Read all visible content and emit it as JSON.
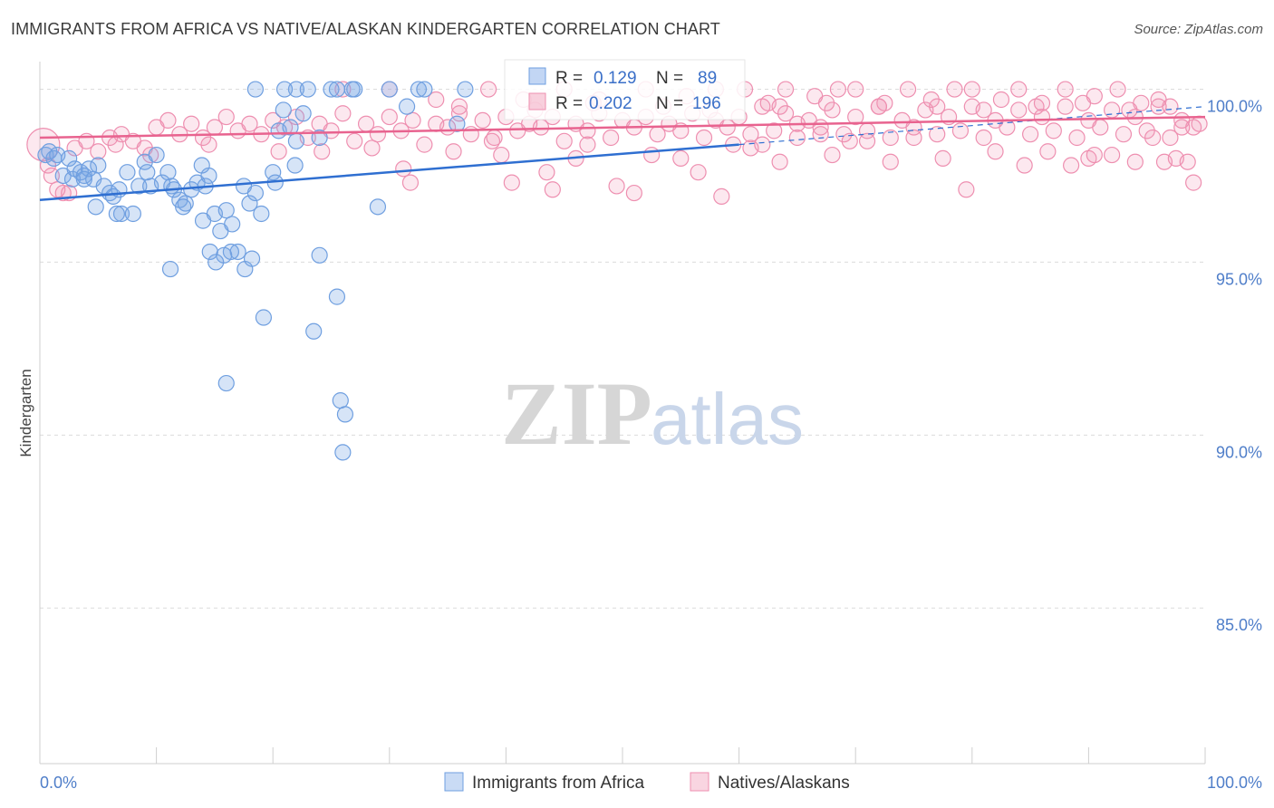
{
  "title": "IMMIGRANTS FROM AFRICA VS NATIVE/ALASKAN KINDERGARTEN CORRELATION CHART",
  "source": "Source: ZipAtlas.com",
  "watermark": {
    "zip": "ZIP",
    "atlas": "atlas"
  },
  "colors": {
    "blue": "#6f9fe0",
    "blue_fill": "rgba(120,165,230,0.30)",
    "blue_line": "#2f6fd1",
    "pink": "#ee8fb0",
    "pink_fill": "rgba(240,150,180,0.22)",
    "pink_line": "#e8638f",
    "grid": "#dcdcdc",
    "tick_text": "#4f7ec9"
  },
  "chart_data": {
    "type": "scatter",
    "title": "IMMIGRANTS FROM AFRICA VS NATIVE/ALASKAN KINDERGARTEN CORRELATION CHART",
    "ylabel": "Kindergarten",
    "xlabel": "",
    "xlim": [
      0,
      100
    ],
    "ylim": [
      80.5,
      100.8
    ],
    "x_tick_labels": {
      "left": "0.0%",
      "right": "100.0%"
    },
    "y_ticks": [
      {
        "value": 100,
        "label": "100.0%"
      },
      {
        "value": 95,
        "label": "95.0%"
      },
      {
        "value": 90,
        "label": "90.0%"
      },
      {
        "value": 85,
        "label": "85.0%"
      }
    ],
    "legend_stats": [
      {
        "r_label": "R =",
        "r": "0.129",
        "n_label": "N =",
        "n": "89"
      },
      {
        "r_label": "R =",
        "r": "0.202",
        "n_label": "N =",
        "n": "196"
      }
    ],
    "series": [
      {
        "name": "Immigrants from Africa",
        "color": "blue",
        "trend": {
          "x0": 0,
          "y0": 96.8,
          "x1": 60,
          "y1": 98.4,
          "dash_to_x": 100,
          "dash_to_y": 99.5
        },
        "points": [
          [
            0.5,
            98.1
          ],
          [
            0.8,
            98.2
          ],
          [
            1.2,
            98.0
          ],
          [
            1.5,
            98.1
          ],
          [
            2.0,
            97.5
          ],
          [
            2.5,
            98.0
          ],
          [
            2.8,
            97.4
          ],
          [
            3.0,
            97.7
          ],
          [
            3.5,
            97.6
          ],
          [
            3.8,
            97.5
          ],
          [
            4.2,
            97.7
          ],
          [
            4.6,
            97.4
          ],
          [
            5.0,
            97.8
          ],
          [
            5.5,
            97.2
          ],
          [
            6.0,
            97.0
          ],
          [
            6.3,
            96.9
          ],
          [
            6.8,
            97.1
          ],
          [
            7.0,
            96.4
          ],
          [
            7.5,
            97.6
          ],
          [
            8.0,
            96.4
          ],
          [
            8.5,
            97.2
          ],
          [
            9.0,
            97.9
          ],
          [
            9.5,
            97.2
          ],
          [
            10.0,
            98.1
          ],
          [
            10.5,
            97.3
          ],
          [
            11.0,
            97.6
          ],
          [
            11.5,
            97.1
          ],
          [
            12.0,
            96.8
          ],
          [
            12.5,
            96.7
          ],
          [
            13.0,
            97.1
          ],
          [
            13.5,
            97.3
          ],
          [
            14.0,
            96.2
          ],
          [
            14.5,
            97.5
          ],
          [
            15.0,
            96.4
          ],
          [
            15.5,
            95.9
          ],
          [
            16.0,
            96.5
          ],
          [
            16.5,
            96.1
          ],
          [
            17.0,
            95.3
          ],
          [
            17.5,
            97.2
          ],
          [
            18.0,
            96.7
          ],
          [
            18.5,
            97.0
          ],
          [
            19.0,
            96.4
          ],
          [
            4.8,
            96.6
          ],
          [
            6.6,
            96.4
          ],
          [
            11.3,
            97.2
          ],
          [
            14.6,
            95.3
          ],
          [
            16.4,
            95.3
          ],
          [
            12.3,
            96.6
          ],
          [
            15.8,
            95.2
          ],
          [
            17.6,
            94.8
          ],
          [
            18.2,
            95.1
          ],
          [
            15.1,
            95.0
          ],
          [
            11.2,
            94.8
          ],
          [
            19.2,
            93.4
          ],
          [
            23.5,
            93.0
          ],
          [
            25.5,
            94.0
          ],
          [
            24.0,
            98.6
          ],
          [
            16.0,
            91.5
          ],
          [
            25.8,
            91.0
          ],
          [
            26.2,
            90.6
          ],
          [
            26.0,
            89.5
          ],
          [
            29.0,
            96.6
          ],
          [
            24.0,
            95.2
          ],
          [
            14.2,
            97.2
          ],
          [
            13.9,
            97.8
          ],
          [
            20.0,
            97.6
          ],
          [
            20.5,
            98.8
          ],
          [
            21.5,
            98.9
          ],
          [
            22.6,
            99.3
          ],
          [
            22.0,
            98.5
          ],
          [
            18.5,
            100.0
          ],
          [
            22.0,
            100.0
          ],
          [
            23.0,
            100.0
          ],
          [
            25.0,
            100.0
          ],
          [
            25.5,
            100.0
          ],
          [
            27.0,
            100.0
          ],
          [
            30.0,
            100.0
          ],
          [
            32.5,
            100.0
          ],
          [
            33.0,
            100.0
          ],
          [
            36.5,
            100.0
          ],
          [
            21.0,
            100.0
          ],
          [
            26.8,
            100.0
          ],
          [
            31.5,
            99.5
          ],
          [
            35.8,
            99.0
          ],
          [
            21.9,
            97.8
          ],
          [
            20.2,
            97.3
          ],
          [
            9.2,
            97.6
          ],
          [
            3.8,
            97.4
          ],
          [
            20.9,
            99.4
          ]
        ]
      },
      {
        "name": "Natives/Alaskans",
        "color": "pink",
        "trend": {
          "x0": 0,
          "y0": 98.6,
          "x1": 100,
          "y1": 99.2
        },
        "points": [
          [
            0.3,
            98.4
          ],
          [
            0.7,
            97.8
          ],
          [
            1.0,
            97.5
          ],
          [
            1.5,
            97.1
          ],
          [
            2.0,
            97.0
          ],
          [
            3.0,
            98.3
          ],
          [
            4.0,
            98.5
          ],
          [
            5.0,
            98.2
          ],
          [
            6.0,
            98.6
          ],
          [
            7.0,
            98.7
          ],
          [
            8.0,
            98.5
          ],
          [
            9.0,
            98.3
          ],
          [
            10.0,
            98.9
          ],
          [
            11.0,
            99.1
          ],
          [
            12.0,
            98.7
          ],
          [
            13.0,
            99.0
          ],
          [
            14.0,
            98.6
          ],
          [
            15.0,
            98.9
          ],
          [
            16.0,
            99.2
          ],
          [
            17.0,
            98.8
          ],
          [
            18.0,
            99.0
          ],
          [
            19.0,
            98.7
          ],
          [
            20.0,
            99.1
          ],
          [
            21.0,
            98.9
          ],
          [
            22.0,
            99.2
          ],
          [
            23.0,
            98.6
          ],
          [
            24.0,
            99.0
          ],
          [
            25.0,
            98.8
          ],
          [
            26.0,
            99.3
          ],
          [
            27.0,
            98.5
          ],
          [
            28.0,
            99.0
          ],
          [
            29.0,
            98.7
          ],
          [
            30.0,
            99.2
          ],
          [
            31.0,
            98.8
          ],
          [
            32.0,
            99.1
          ],
          [
            33.0,
            98.4
          ],
          [
            34.0,
            99.0
          ],
          [
            35.0,
            98.9
          ],
          [
            36.0,
            99.3
          ],
          [
            37.0,
            98.7
          ],
          [
            38.0,
            99.1
          ],
          [
            39.0,
            98.6
          ],
          [
            40.0,
            99.2
          ],
          [
            41.0,
            98.8
          ],
          [
            42.0,
            99.0
          ],
          [
            43.0,
            98.9
          ],
          [
            44.0,
            99.2
          ],
          [
            45.0,
            98.5
          ],
          [
            46.0,
            99.0
          ],
          [
            47.0,
            98.8
          ],
          [
            48.0,
            99.3
          ],
          [
            49.0,
            98.6
          ],
          [
            50.0,
            99.1
          ],
          [
            51.0,
            98.9
          ],
          [
            52.0,
            99.2
          ],
          [
            53.0,
            98.7
          ],
          [
            54.0,
            99.0
          ],
          [
            55.0,
            98.8
          ],
          [
            56.0,
            99.3
          ],
          [
            57.0,
            98.6
          ],
          [
            58.0,
            99.1
          ],
          [
            59.0,
            98.9
          ],
          [
            60.0,
            99.2
          ],
          [
            61.0,
            98.7
          ],
          [
            62.0,
            99.5
          ],
          [
            63.0,
            98.8
          ],
          [
            64.0,
            99.3
          ],
          [
            65.0,
            98.6
          ],
          [
            66.0,
            99.1
          ],
          [
            67.0,
            98.9
          ],
          [
            68.0,
            99.4
          ],
          [
            69.0,
            98.7
          ],
          [
            70.0,
            99.2
          ],
          [
            71.0,
            98.8
          ],
          [
            72.0,
            99.5
          ],
          [
            73.0,
            98.6
          ],
          [
            74.0,
            99.1
          ],
          [
            75.0,
            98.9
          ],
          [
            76.0,
            99.4
          ],
          [
            77.0,
            98.7
          ],
          [
            78.0,
            99.2
          ],
          [
            79.0,
            98.8
          ],
          [
            80.0,
            99.5
          ],
          [
            81.0,
            98.6
          ],
          [
            82.0,
            99.1
          ],
          [
            83.0,
            98.9
          ],
          [
            84.0,
            99.4
          ],
          [
            85.0,
            98.7
          ],
          [
            86.0,
            99.2
          ],
          [
            87.0,
            98.8
          ],
          [
            88.0,
            99.5
          ],
          [
            89.0,
            98.6
          ],
          [
            90.0,
            99.1
          ],
          [
            91.0,
            98.9
          ],
          [
            92.0,
            99.4
          ],
          [
            93.0,
            98.7
          ],
          [
            94.0,
            99.2
          ],
          [
            95.0,
            98.8
          ],
          [
            96.0,
            99.5
          ],
          [
            97.0,
            98.6
          ],
          [
            98.0,
            99.1
          ],
          [
            99.0,
            98.9
          ],
          [
            2.5,
            97.0
          ],
          [
            6.5,
            98.4
          ],
          [
            9.5,
            98.1
          ],
          [
            14.5,
            98.4
          ],
          [
            20.5,
            98.2
          ],
          [
            24.2,
            98.2
          ],
          [
            28.5,
            98.3
          ],
          [
            31.2,
            97.7
          ],
          [
            31.8,
            97.3
          ],
          [
            35.5,
            98.2
          ],
          [
            38.8,
            98.5
          ],
          [
            39.6,
            98.1
          ],
          [
            40.5,
            97.3
          ],
          [
            43.5,
            97.6
          ],
          [
            44.0,
            97.1
          ],
          [
            46.0,
            98.0
          ],
          [
            47.0,
            98.4
          ],
          [
            49.5,
            97.2
          ],
          [
            51.0,
            97.0
          ],
          [
            52.5,
            98.1
          ],
          [
            55.0,
            98.0
          ],
          [
            56.5,
            97.6
          ],
          [
            58.5,
            96.9
          ],
          [
            62.0,
            98.4
          ],
          [
            65.0,
            99.0
          ],
          [
            68.0,
            98.1
          ],
          [
            71.0,
            98.5
          ],
          [
            73.0,
            97.9
          ],
          [
            75.0,
            98.6
          ],
          [
            77.5,
            98.0
          ],
          [
            79.5,
            97.1
          ],
          [
            82.0,
            98.2
          ],
          [
            84.5,
            97.8
          ],
          [
            86.5,
            98.2
          ],
          [
            88.5,
            97.8
          ],
          [
            90.0,
            98.0
          ],
          [
            90.5,
            98.1
          ],
          [
            92.0,
            98.1
          ],
          [
            94.0,
            97.9
          ],
          [
            95.5,
            98.6
          ],
          [
            96.5,
            97.9
          ],
          [
            97.5,
            98.0
          ],
          [
            98.5,
            97.9
          ],
          [
            99.0,
            97.3
          ],
          [
            26.0,
            100.0
          ],
          [
            30.0,
            100.0
          ],
          [
            34.0,
            99.7
          ],
          [
            38.5,
            100.0
          ],
          [
            41.5,
            99.7
          ],
          [
            45.0,
            100.0
          ],
          [
            48.0,
            99.7
          ],
          [
            52.0,
            100.0
          ],
          [
            55.5,
            99.8
          ],
          [
            58.0,
            100.0
          ],
          [
            60.5,
            100.0
          ],
          [
            62.5,
            99.6
          ],
          [
            64.0,
            100.0
          ],
          [
            66.5,
            99.8
          ],
          [
            68.5,
            100.0
          ],
          [
            70.0,
            100.0
          ],
          [
            72.5,
            99.6
          ],
          [
            74.5,
            100.0
          ],
          [
            76.5,
            99.7
          ],
          [
            78.5,
            100.0
          ],
          [
            80.0,
            100.0
          ],
          [
            82.5,
            99.7
          ],
          [
            84.0,
            100.0
          ],
          [
            86.0,
            99.6
          ],
          [
            88.0,
            100.0
          ],
          [
            90.5,
            99.8
          ],
          [
            92.5,
            100.0
          ],
          [
            94.5,
            99.6
          ],
          [
            96.0,
            99.7
          ],
          [
            98.0,
            98.9
          ],
          [
            99.5,
            99.0
          ],
          [
            36.0,
            99.5
          ],
          [
            42.5,
            99.4
          ],
          [
            47.5,
            99.6
          ],
          [
            53.5,
            99.5
          ],
          [
            57.5,
            99.4
          ],
          [
            63.5,
            99.5
          ],
          [
            67.5,
            99.6
          ],
          [
            72.0,
            99.5
          ],
          [
            77.0,
            99.5
          ],
          [
            81.0,
            99.4
          ],
          [
            85.5,
            99.5
          ],
          [
            89.5,
            99.6
          ],
          [
            93.5,
            99.4
          ],
          [
            97.0,
            99.5
          ],
          [
            59.5,
            98.4
          ],
          [
            61.0,
            98.3
          ],
          [
            63.5,
            97.9
          ],
          [
            67.0,
            98.7
          ],
          [
            69.5,
            98.5
          ]
        ]
      }
    ]
  },
  "legend": {
    "items": [
      {
        "label": "Immigrants from Africa"
      },
      {
        "label": "Natives/Alaskans"
      }
    ]
  }
}
